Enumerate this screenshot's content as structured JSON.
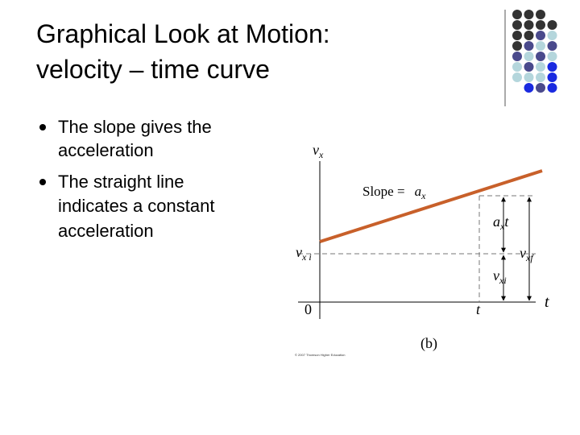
{
  "title": {
    "line1": "Graphical Look at Motion:",
    "line2": "velocity – time curve"
  },
  "bullets": [
    {
      "lines": [
        "The slope gives the",
        "acceleration"
      ]
    },
    {
      "lines": [
        "The straight line",
        "indicates a constant",
        "acceleration"
      ]
    }
  ],
  "diagram": {
    "y_axis_label": {
      "base": "v",
      "sub": "x"
    },
    "x_axis_label": "t",
    "origin_label": "0",
    "t_mark_label": "t",
    "slope_label": {
      "text": "Slope =",
      "base": "a",
      "sub": "x"
    },
    "vxi_axis_label": {
      "base": "v",
      "sub": "x i"
    },
    "axt_label": {
      "base": "a",
      "sub": "x",
      "tail": "t"
    },
    "vxf_label": {
      "base": "v",
      "sub": "xf"
    },
    "vxi_label": {
      "base": "v",
      "sub": "xi"
    },
    "caption": "(b)",
    "copyright": "© 2007 Thomson Higher Education"
  }
}
